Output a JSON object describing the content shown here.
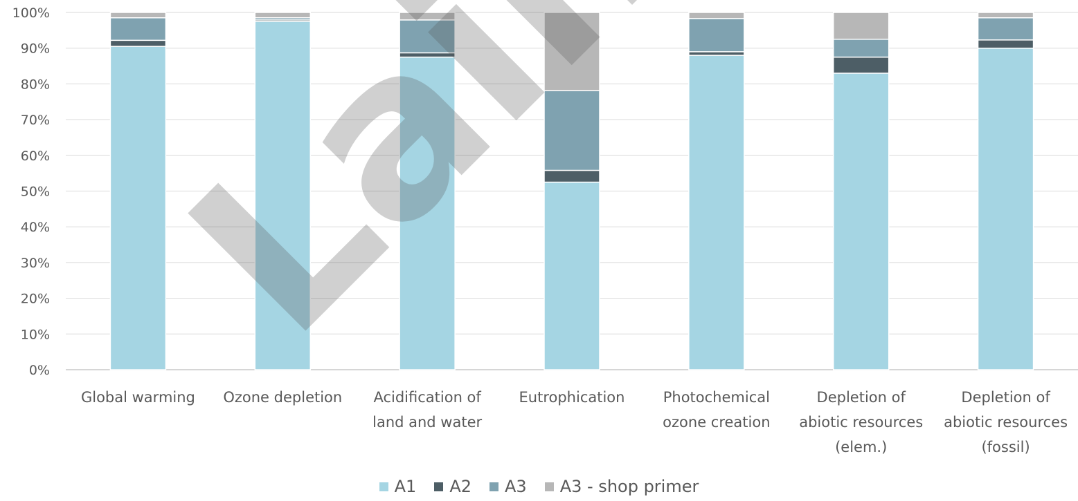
{
  "chart_data": {
    "type": "bar",
    "stacked": true,
    "categories": [
      [
        "Global warming"
      ],
      [
        "Ozone depletion"
      ],
      [
        "Acidification of",
        "land and water"
      ],
      [
        "Eutrophication"
      ],
      [
        "Photochemical",
        "ozone creation"
      ],
      [
        "Depletion of",
        "abiotic resources",
        "(elem.)"
      ],
      [
        "Depletion of",
        "abiotic resources",
        "(fossil)"
      ]
    ],
    "series": [
      {
        "name": "A1",
        "color": "#a5d5e3",
        "values": [
          90.5,
          97.5,
          87.5,
          52.5,
          88.0,
          83.0,
          90.0
        ]
      },
      {
        "name": "A2",
        "color": "#4d5e66",
        "values": [
          1.7,
          0.4,
          1.2,
          3.3,
          1.0,
          4.5,
          2.3
        ]
      },
      {
        "name": "A3",
        "color": "#7fa2b0",
        "values": [
          6.3,
          0.6,
          9.2,
          22.3,
          9.3,
          5.0,
          6.2
        ]
      },
      {
        "name": "A3 - shop primer",
        "color": "#b7b7b7",
        "values": [
          1.5,
          1.5,
          2.1,
          21.9,
          1.7,
          7.5,
          1.5
        ]
      }
    ],
    "yticks": [
      "0%",
      "10%",
      "20%",
      "30%",
      "40%",
      "50%",
      "60%",
      "70%",
      "80%",
      "90%",
      "100%"
    ],
    "ylim": [
      0,
      100
    ],
    "grid": true,
    "legend_position": "bottom",
    "watermark": "Laince"
  }
}
